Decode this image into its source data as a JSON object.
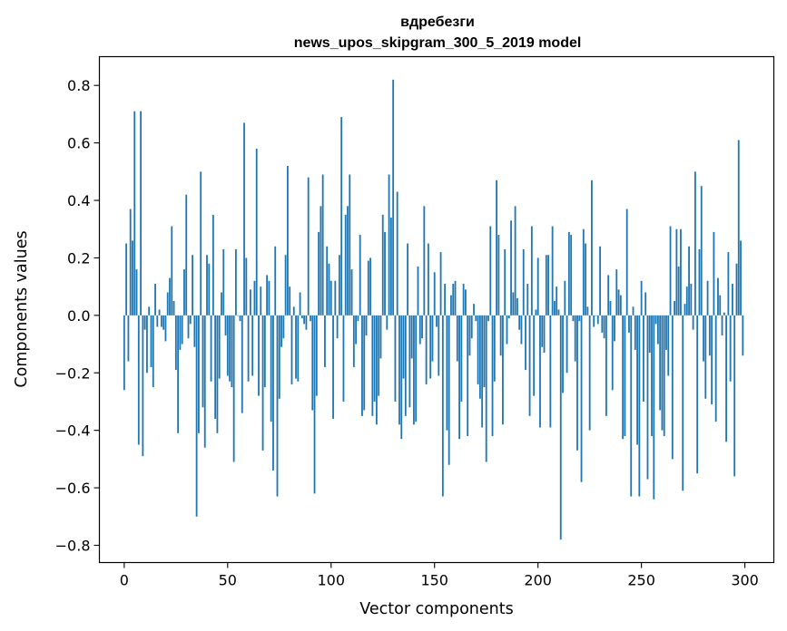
{
  "chart_data": {
    "type": "bar",
    "title": "вдребезги",
    "subtitle": "news_upos_skipgram_300_5_2019 model",
    "xlabel": "Vector components",
    "ylabel": "Components values",
    "xlim": [
      -12,
      314
    ],
    "ylim": [
      -0.86,
      0.9
    ],
    "xticks": [
      0,
      50,
      100,
      150,
      200,
      250,
      300
    ],
    "xtick_labels": [
      "0",
      "50",
      "100",
      "150",
      "200",
      "250",
      "300"
    ],
    "yticks": [
      0.8,
      0.6,
      0.4,
      0.2,
      0.0,
      -0.2,
      -0.4,
      -0.6,
      -0.8
    ],
    "ytick_labels": [
      "0.8",
      "0.6",
      "0.4",
      "0.2",
      "0.0",
      "−0.2",
      "−0.4",
      "−0.6",
      "−0.8"
    ],
    "grid": false,
    "bar_color": "#1f77b4",
    "x_start": 0,
    "values": [
      -0.26,
      0.25,
      -0.16,
      0.37,
      0.26,
      0.71,
      0.16,
      -0.45,
      0.71,
      -0.49,
      -0.05,
      -0.2,
      0.03,
      -0.18,
      -0.25,
      0.11,
      -0.04,
      0.02,
      -0.04,
      -0.05,
      -0.09,
      0.08,
      0.13,
      0.31,
      0.05,
      -0.19,
      -0.41,
      -0.12,
      -0.1,
      0.16,
      0.42,
      -0.08,
      -0.03,
      0.21,
      -0.11,
      -0.7,
      -0.41,
      0.5,
      -0.32,
      -0.46,
      0.21,
      0.18,
      -0.23,
      0.35,
      -0.36,
      -0.41,
      -0.22,
      0.08,
      0.23,
      -0.07,
      -0.21,
      -0.23,
      -0.25,
      -0.51,
      0.23,
      0.0,
      -0.02,
      -0.34,
      0.67,
      0.2,
      -0.23,
      0.09,
      -0.21,
      0.12,
      0.58,
      -0.28,
      0.1,
      -0.47,
      -0.25,
      0.14,
      0.12,
      -0.37,
      -0.54,
      0.24,
      -0.63,
      -0.29,
      -0.11,
      -0.08,
      0.21,
      0.52,
      0.1,
      -0.24,
      0.03,
      -0.22,
      -0.23,
      0.08,
      -0.01,
      -0.03,
      -0.05,
      0.48,
      -0.02,
      -0.33,
      -0.62,
      -0.28,
      0.29,
      0.38,
      0.49,
      -0.18,
      0.24,
      0.18,
      0.12,
      -0.36,
      0.12,
      -0.08,
      0.21,
      0.69,
      -0.3,
      0.35,
      0.38,
      0.49,
      0.16,
      -0.18,
      -0.1,
      -0.02,
      0.28,
      -0.35,
      -0.33,
      -0.07,
      0.19,
      0.2,
      -0.35,
      -0.3,
      -0.38,
      -0.28,
      -0.15,
      0.35,
      0.29,
      -0.05,
      0.49,
      0.34,
      0.82,
      -0.3,
      0.43,
      -0.38,
      -0.43,
      -0.22,
      -0.35,
      0.25,
      -0.32,
      -0.15,
      -0.38,
      -0.37,
      0.17,
      -0.1,
      -0.08,
      0.38,
      -0.24,
      0.25,
      -0.22,
      -0.16,
      0.15,
      -0.04,
      -0.21,
      0.22,
      -0.63,
      0.11,
      -0.4,
      -0.52,
      0.07,
      0.11,
      0.12,
      -0.16,
      -0.43,
      -0.3,
      0.11,
      0.09,
      -0.42,
      -0.14,
      -0.08,
      0.04,
      -0.02,
      -0.24,
      -0.29,
      -0.39,
      -0.25,
      -0.51,
      -0.02,
      0.31,
      -0.42,
      -0.23,
      0.47,
      0.28,
      -0.14,
      -0.38,
      0.23,
      -0.1,
      -0.01,
      0.33,
      0.08,
      0.38,
      0.06,
      -0.05,
      -0.1,
      0.23,
      -0.19,
      0.11,
      -0.35,
      0.31,
      -0.28,
      0.02,
      0.2,
      -0.39,
      -0.11,
      -0.13,
      0.21,
      0.21,
      -0.39,
      0.31,
      0.05,
      0.1,
      0.02,
      -0.78,
      -0.27,
      0.12,
      -0.2,
      0.29,
      0.28,
      -0.02,
      -0.16,
      -0.47,
      -0.02,
      -0.58,
      0.3,
      0.25,
      0.03,
      -0.4,
      0.47,
      -0.04,
      0.0,
      -0.03,
      0.24,
      -0.06,
      -0.08,
      -0.35,
      0.14,
      0.05,
      -0.26,
      -0.09,
      0.16,
      0.09,
      0.07,
      -0.43,
      -0.42,
      0.37,
      -0.06,
      -0.63,
      0.03,
      -0.12,
      -0.45,
      -0.63,
      0.12,
      -0.3,
      0.08,
      -0.57,
      -0.13,
      -0.42,
      -0.64,
      -0.03,
      -0.1,
      -0.33,
      -0.4,
      -0.42,
      -0.12,
      -0.21,
      0.31,
      -0.5,
      0.05,
      0.3,
      0.17,
      0.3,
      -0.61,
      0.04,
      0.1,
      0.24,
      0.11,
      -0.05,
      0.5,
      -0.55,
      0.23,
      0.45,
      -0.16,
      -0.29,
      0.12,
      -0.14,
      -0.31,
      0.29,
      -0.37,
      0.13,
      0.07,
      -0.07,
      0.01,
      -0.44,
      0.22,
      -0.23,
      0.11,
      -0.56,
      0.18,
      0.61,
      0.26,
      -0.14
    ]
  }
}
